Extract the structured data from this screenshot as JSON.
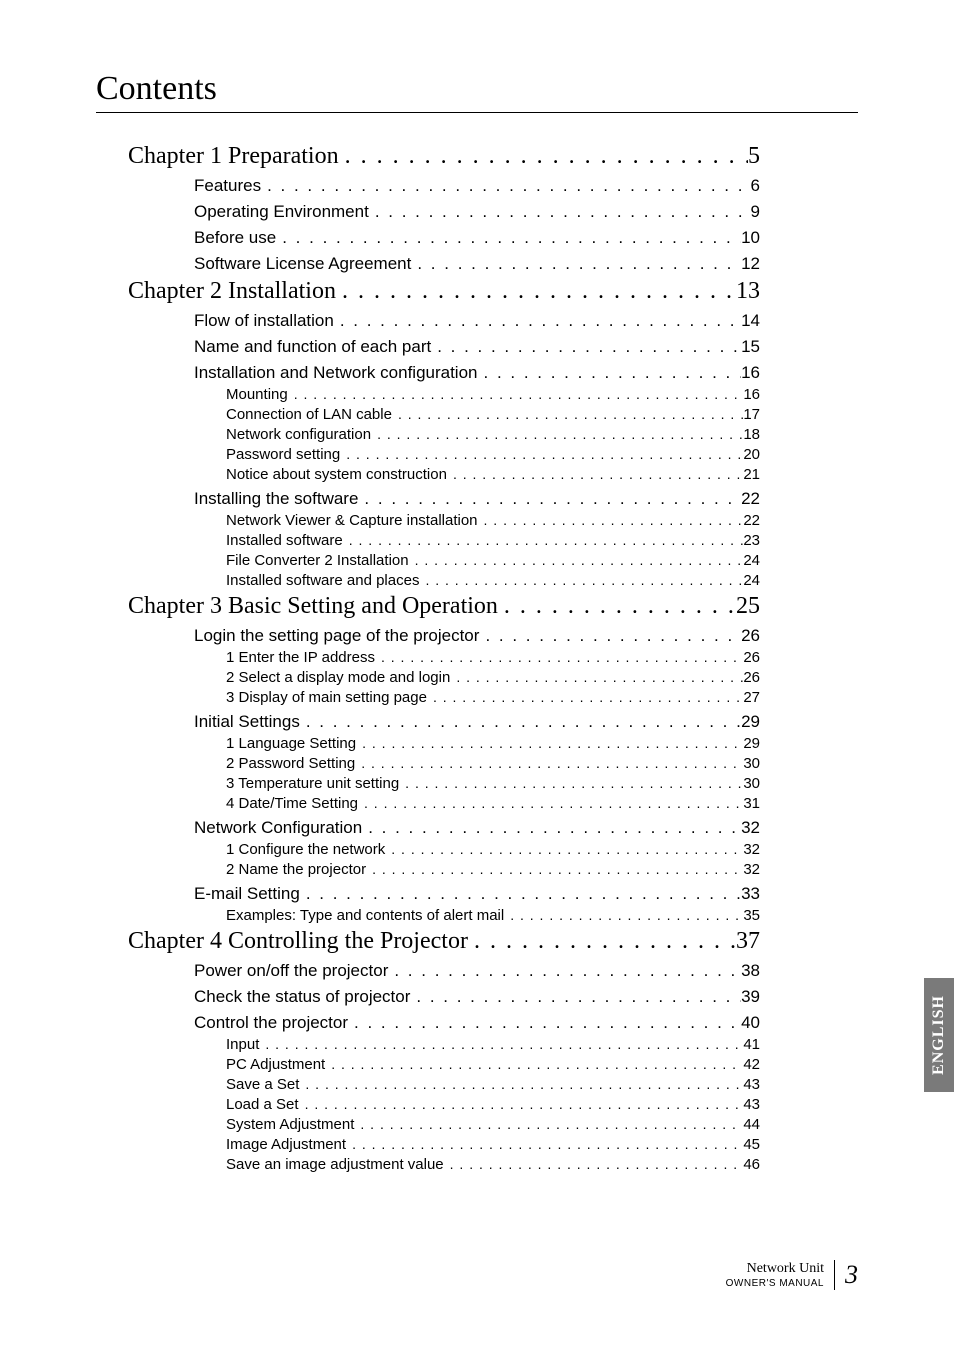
{
  "title": "Contents",
  "side_tab": "ENGLISH",
  "footer": {
    "line1": "Network Unit",
    "line2": "OWNER'S MANUAL",
    "page_number": "3"
  },
  "toc": [
    {
      "level": 0,
      "label": "Chapter 1 Preparation",
      "page": "5"
    },
    {
      "level": 1,
      "label": "Features",
      "page": "6"
    },
    {
      "level": 1,
      "label": "Operating Environment",
      "page": "9"
    },
    {
      "level": 1,
      "label": "Before use",
      "page": "10"
    },
    {
      "level": 1,
      "label": "Software License Agreement",
      "page": "12"
    },
    {
      "level": 0,
      "label": "Chapter 2 Installation",
      "page": "13"
    },
    {
      "level": 1,
      "label": "Flow of installation",
      "page": "14"
    },
    {
      "level": 1,
      "label": "Name and function of each part",
      "page": "15"
    },
    {
      "level": 1,
      "label": "Installation and Network configuration",
      "page": "16"
    },
    {
      "level": 2,
      "label": "Mounting",
      "page": "16"
    },
    {
      "level": 2,
      "label": "Connection of LAN cable",
      "page": "17"
    },
    {
      "level": 2,
      "label": "Network configuration",
      "page": "18"
    },
    {
      "level": 2,
      "label": "Password setting",
      "page": "20"
    },
    {
      "level": 2,
      "label": "Notice about system construction",
      "page": "21"
    },
    {
      "level": 1,
      "label": "Installing the software",
      "page": "22"
    },
    {
      "level": 2,
      "label": "Network Viewer & Capture installation",
      "page": "22"
    },
    {
      "level": 2,
      "label": "Installed software",
      "page": "23"
    },
    {
      "level": 2,
      "label": "File Converter 2 Installation",
      "page": "24"
    },
    {
      "level": 2,
      "label": "Installed software and places",
      "page": "24"
    },
    {
      "level": 0,
      "label": "Chapter 3 Basic Setting and Operation",
      "page": "25"
    },
    {
      "level": 1,
      "label": "Login the setting page of the projector",
      "page": "26"
    },
    {
      "level": 2,
      "label": "1 Enter the IP address",
      "page": "26"
    },
    {
      "level": 2,
      "label": "2 Select a display mode and login",
      "page": "26"
    },
    {
      "level": 2,
      "label": "3 Display of main setting page",
      "page": "27"
    },
    {
      "level": 1,
      "label": "Initial Settings",
      "page": "29"
    },
    {
      "level": 2,
      "label": "1 Language Setting",
      "page": "29"
    },
    {
      "level": 2,
      "label": "2 Password Setting",
      "page": "30"
    },
    {
      "level": 2,
      "label": "3 Temperature unit setting",
      "page": "30"
    },
    {
      "level": 2,
      "label": "4 Date/Time Setting",
      "page": "31"
    },
    {
      "level": 1,
      "label": "Network Configuration",
      "page": "32"
    },
    {
      "level": 2,
      "label": "1 Configure the network",
      "page": "32"
    },
    {
      "level": 2,
      "label": "2 Name the projector",
      "page": "32"
    },
    {
      "level": 1,
      "label": "E-mail Setting",
      "page": "33"
    },
    {
      "level": 2,
      "label": "Examples: Type and contents of alert mail",
      "page": "35"
    },
    {
      "level": 0,
      "label": "Chapter 4 Controlling the Projector",
      "page": "37"
    },
    {
      "level": 1,
      "label": "Power on/off the projector",
      "page": "38"
    },
    {
      "level": 1,
      "label": "Check the status of projector",
      "page": "39"
    },
    {
      "level": 1,
      "label": "Control the projector",
      "page": "40"
    },
    {
      "level": 2,
      "label": "Input",
      "page": "41"
    },
    {
      "level": 2,
      "label": "PC Adjustment",
      "page": "42"
    },
    {
      "level": 2,
      "label": "Save a Set",
      "page": "43"
    },
    {
      "level": 2,
      "label": "Load a Set",
      "page": "43"
    },
    {
      "level": 2,
      "label": "System Adjustment",
      "page": "44"
    },
    {
      "level": 2,
      "label": "Image Adjustment",
      "page": "45"
    },
    {
      "level": 2,
      "label": "Save an image adjustment value",
      "page": "46"
    }
  ],
  "leader_chars": ". . . . . . . . . . . . . . . . . . . . . . . . . . . . . . . . . . . . . . . . . . . . . . . . . . . . . . . . . . . . . . . . . . . . . . . . . . . . . . . . . . . . . . . . . . . . . . . . . . . . . . . . . . . . . . . . . . . . . . . . . . . . . . . . . . . . . . . . . . . . . . . . ."
}
